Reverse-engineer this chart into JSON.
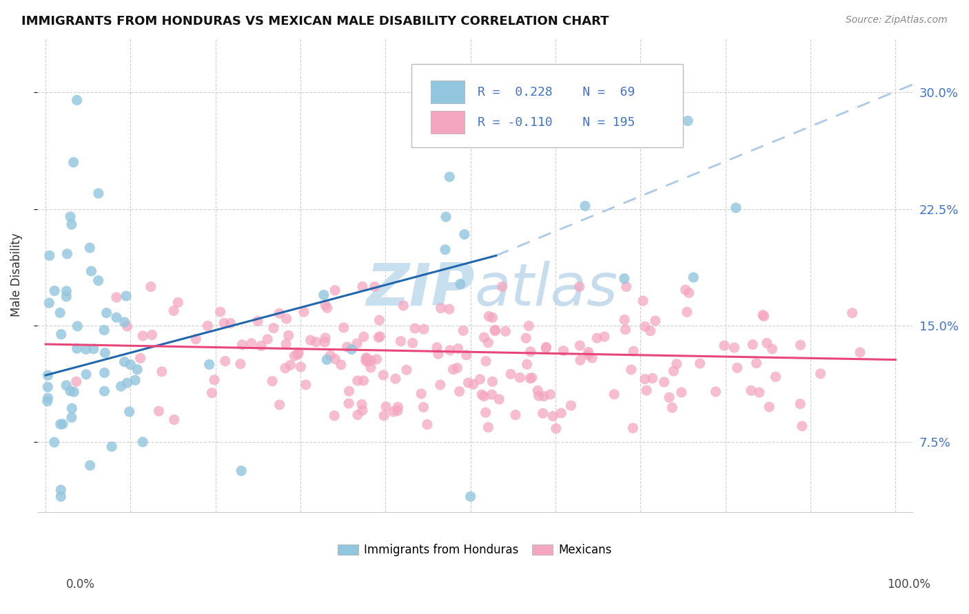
{
  "title": "IMMIGRANTS FROM HONDURAS VS MEXICAN MALE DISABILITY CORRELATION CHART",
  "source": "Source: ZipAtlas.com",
  "ylabel": "Male Disability",
  "ytick_vals": [
    0.075,
    0.15,
    0.225,
    0.3
  ],
  "ytick_labels": [
    "7.5%",
    "15.0%",
    "22.5%",
    "30.0%"
  ],
  "xlim": [
    -0.01,
    1.02
  ],
  "ylim": [
    0.03,
    0.335
  ],
  "color_blue": "#92c5de",
  "color_pink": "#f4a6c0",
  "trendline_blue": "#2166ac",
  "trendline_pink": "#e8457a",
  "trendline_dash_color": "#aac8e8",
  "watermark_color": "#c8dff0",
  "legend_label1": "Immigrants from Honduras",
  "legend_label2": "Mexicans",
  "legend_r1": "R =  0.228",
  "legend_n1": "N =  69",
  "legend_r2": "R = -0.110",
  "legend_n2": "N = 195",
  "blue_trend_x": [
    0.0,
    0.53
  ],
  "blue_trend_y": [
    0.118,
    0.195
  ],
  "dash_trend_x": [
    0.53,
    1.02
  ],
  "dash_trend_y": [
    0.195,
    0.305
  ],
  "pink_trend_x": [
    0.0,
    1.0
  ],
  "pink_trend_y": [
    0.138,
    0.128
  ]
}
